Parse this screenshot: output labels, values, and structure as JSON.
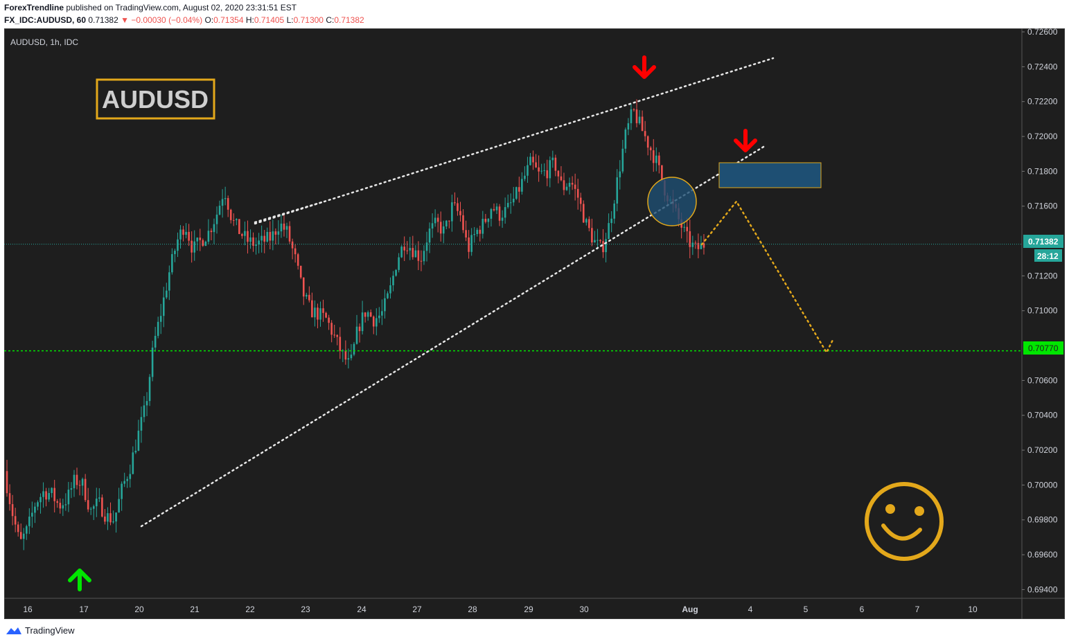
{
  "header": {
    "author": "ForexTrendline",
    "published_text": "published on TradingView.com, August 02, 2020 23:31:51 EST",
    "symbol_line": "FX_IDC:AUDUSD, 60",
    "last": "0.71382",
    "change": "−0.00030 (−0.04%)",
    "o_label": "O:",
    "o": "0.71354",
    "h_label": "H:",
    "h": "0.71405",
    "l_label": "L:",
    "l": "0.71300",
    "c_label": "C:",
    "c": "0.71382"
  },
  "footer": {
    "brand": "TradingView"
  },
  "colors": {
    "background": "#1e1e1e",
    "bull": "#26a69a",
    "bear": "#ef5350",
    "support_line": "#00e600",
    "price_tag": "#26a69a",
    "accent_gold": "#e3a81b",
    "zone": "#1e4f73"
  },
  "chart_data": {
    "type": "candlestick",
    "subtitle": "AUDUSD, 1h, IDC",
    "title_box": "AUDUSD",
    "y_ticks": [
      "0.72600",
      "0.72400",
      "0.72200",
      "0.72000",
      "0.71800",
      "0.71600",
      "0.71200",
      "0.71000",
      "0.70600",
      "0.70400",
      "0.70200",
      "0.70000",
      "0.69800",
      "0.69600",
      "0.69400"
    ],
    "ylim": [
      0.6935,
      0.7262
    ],
    "x_ticks": [
      "16",
      "17",
      "20",
      "21",
      "22",
      "23",
      "24",
      "27",
      "28",
      "29",
      "30",
      "Aug",
      "4",
      "5",
      "6",
      "7",
      "10"
    ],
    "current_price": "0.71382",
    "countdown": "28:12",
    "support_level": "0.70770",
    "price_path": [
      0.7008,
      0.6985,
      0.6966,
      0.6975,
      0.699,
      0.6996,
      0.6995,
      0.6988,
      0.6992,
      0.7003,
      0.7,
      0.6985,
      0.699,
      0.6982,
      0.698,
      0.6998,
      0.701,
      0.7028,
      0.7045,
      0.708,
      0.71,
      0.7122,
      0.714,
      0.715,
      0.7135,
      0.714,
      0.7145,
      0.7155,
      0.717,
      0.7152,
      0.7145,
      0.714,
      0.7138,
      0.714,
      0.7142,
      0.715,
      0.7145,
      0.713,
      0.711,
      0.71,
      0.7098,
      0.7095,
      0.7085,
      0.7075,
      0.7068,
      0.709,
      0.71,
      0.7095,
      0.7098,
      0.711,
      0.713,
      0.714,
      0.7135,
      0.713,
      0.7145,
      0.715,
      0.7145,
      0.716,
      0.7155,
      0.7135,
      0.7145,
      0.715,
      0.716,
      0.7155,
      0.7158,
      0.7165,
      0.7175,
      0.7185,
      0.7178,
      0.718,
      0.7185,
      0.717,
      0.7175,
      0.7165,
      0.715,
      0.714,
      0.7135,
      0.715,
      0.7175,
      0.72,
      0.7215,
      0.7205,
      0.7195,
      0.7185,
      0.717,
      0.716,
      0.715,
      0.714,
      0.7135,
      0.7138
    ]
  }
}
